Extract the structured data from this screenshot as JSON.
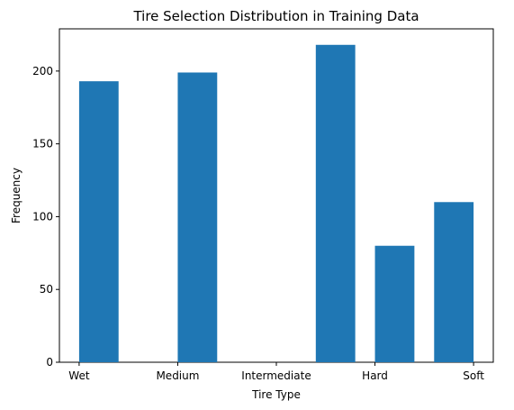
{
  "chart_data": {
    "type": "bar",
    "title": "Tire Selection Distribution in Training Data",
    "xlabel": "Tire Type",
    "ylabel": "Frequency",
    "categories": [
      "Wet",
      "Medium",
      "Intermediate",
      "Hard",
      "Soft"
    ],
    "values": [
      193,
      199,
      218,
      80,
      110
    ],
    "yticks": [
      0,
      50,
      100,
      150,
      200
    ],
    "ylim": [
      0,
      229
    ],
    "grid": false,
    "bar_color": "#1f77b4"
  }
}
